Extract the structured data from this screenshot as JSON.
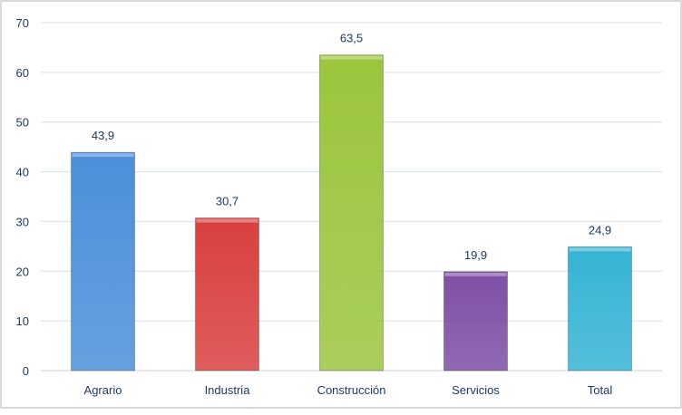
{
  "chart_data": {
    "type": "bar",
    "title": "",
    "xlabel": "",
    "ylabel": "",
    "categories": [
      "Agrario",
      "Industria",
      "Construcción",
      "Servicios",
      "Total"
    ],
    "values": [
      43.9,
      30.7,
      63.5,
      19.9,
      24.9
    ],
    "value_labels": [
      "43,9",
      "30,7",
      "63,5",
      "19,9",
      "24,9"
    ],
    "colors": [
      "#4a90d9",
      "#d9403f",
      "#9bc53d",
      "#7e4fa5",
      "#35b4d4"
    ],
    "ylim": [
      0,
      70
    ],
    "yticks": [
      0,
      10,
      20,
      30,
      40,
      50,
      60,
      70
    ],
    "grid": true,
    "legend": "none"
  }
}
